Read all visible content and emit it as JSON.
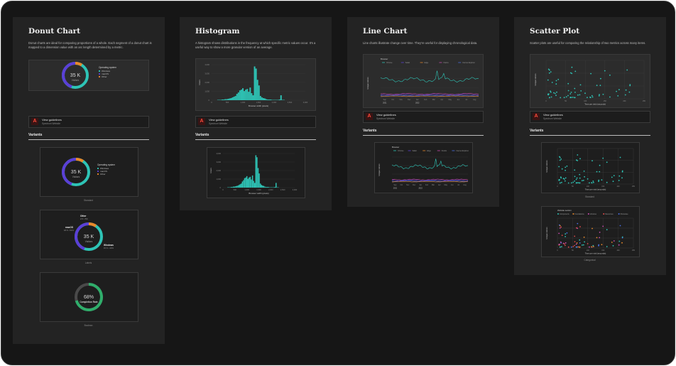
{
  "colors": {
    "teal": "#2ec4b6",
    "purple": "#5b3fd6",
    "orange": "#e8892b",
    "green": "#2fae6b",
    "pink": "#c94cb0",
    "blue": "#4a6fe3",
    "red": "#e04b4b",
    "yellow": "#d9b43a"
  },
  "guideline": {
    "title": "View guidelines",
    "subtitle": "Spectrum Website"
  },
  "variants_label": "Variants",
  "donut": {
    "title": "Donut Chart",
    "description": "Donut charts are ideal for comparing proportions of a whole. Each segment of a donut chart is mapped to a dimension value with an arc length determined by a metric.",
    "value": "35 K",
    "unit": "Visitors",
    "legend_title": "Operating system",
    "legend": [
      "Windows",
      "macOS",
      "Other"
    ],
    "captions": [
      "Standard",
      "Labels",
      "Boolean"
    ],
    "label_mac": "macOS",
    "label_mac_sub": "18 K • 51%",
    "label_other": "Other",
    "label_other_sub": "2 K • 5%",
    "label_windows": "Windows",
    "label_windows_sub": "15 K • 44%",
    "bool_value": "68%",
    "bool_unit": "Completion Rate"
  },
  "histogram": {
    "title": "Histogram",
    "description": "A histogram shows distributions in the frequency at which specific metric values occur. It’s a useful way to show a more granular version of an average.",
    "xlabel": "Browser width (pixels)",
    "ylabel": "Users",
    "xticks": [
      "0",
      "500",
      "1,000",
      "1,500",
      "2,000",
      "2,500",
      "3,000"
    ],
    "yticks": [
      "0",
      "1,000",
      "2,000",
      "3,000",
      "4,000"
    ]
  },
  "line": {
    "title": "Line Chart",
    "description": "Line charts illustrate change over time. They’re useful for displaying chronological data.",
    "legend_title": "Browser",
    "legend": [
      "Chrome",
      "Safari",
      "Edge",
      "Firefox",
      "Internet Explorer"
    ],
    "ylabel": "Unique visitors",
    "xticks": [
      "Sep",
      "Oct",
      "Nov",
      "Dec",
      "Jan",
      "Feb",
      "Mar",
      "Apr",
      "May",
      "Jun",
      "Jul",
      "Aug"
    ],
    "years": [
      "2021",
      "2022"
    ]
  },
  "scatter": {
    "title": "Scatter Plot",
    "description": "Scatter plots are useful for comparing the relationship of two metrics across many items.",
    "xlabel": "Time per visit (seconds)",
    "ylabel": "Unique visitors",
    "xticks": [
      "0",
      "50",
      "100",
      "150",
      "200",
      "250"
    ],
    "captions": [
      "Standard",
      "Categorical"
    ],
    "legend_title": "Website section",
    "legend": [
      "Components",
      "Foundations",
      "Libraries",
      "Resources",
      "Showcase"
    ]
  }
}
